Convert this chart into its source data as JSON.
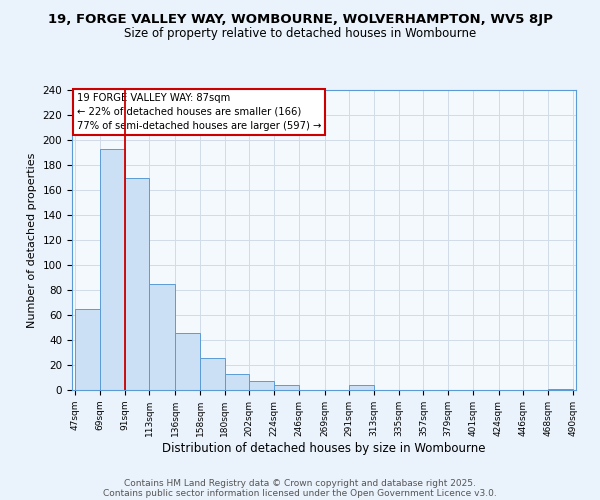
{
  "title": "19, FORGE VALLEY WAY, WOMBOURNE, WOLVERHAMPTON, WV5 8JP",
  "subtitle": "Size of property relative to detached houses in Wombourne",
  "xlabel": "Distribution of detached houses by size in Wombourne",
  "ylabel": "Number of detached properties",
  "bar_edges": [
    47,
    69,
    91,
    113,
    136,
    158,
    180,
    202,
    224,
    246,
    269,
    291,
    313,
    335,
    357,
    379,
    401,
    424,
    446,
    468,
    490
  ],
  "bar_heights": [
    65,
    193,
    170,
    85,
    46,
    26,
    13,
    7,
    4,
    0,
    0,
    4,
    0,
    0,
    0,
    0,
    0,
    0,
    0,
    1
  ],
  "bar_color": "#cce0f5",
  "bar_edge_color": "#5b9bd5",
  "vline_x": 91,
  "vline_color": "#cc0000",
  "ann_line1": "19 FORGE VALLEY WAY: 87sqm",
  "ann_line2": "← 22% of detached houses are smaller (166)",
  "ann_line3": "77% of semi-detached houses are larger (597) →",
  "ylim": [
    0,
    240
  ],
  "yticks": [
    0,
    20,
    40,
    60,
    80,
    100,
    120,
    140,
    160,
    180,
    200,
    220,
    240
  ],
  "grid_color": "#d0dce8",
  "bg_color": "#eaf2fb",
  "plot_bg_color": "#f4f9fe",
  "footnote_line1": "Contains HM Land Registry data © Crown copyright and database right 2025.",
  "footnote_line2": "Contains public sector information licensed under the Open Government Licence v3.0.",
  "tick_labels": [
    "47sqm",
    "69sqm",
    "91sqm",
    "113sqm",
    "136sqm",
    "158sqm",
    "180sqm",
    "202sqm",
    "224sqm",
    "246sqm",
    "269sqm",
    "291sqm",
    "313sqm",
    "335sqm",
    "357sqm",
    "379sqm",
    "401sqm",
    "424sqm",
    "446sqm",
    "468sqm",
    "490sqm"
  ]
}
